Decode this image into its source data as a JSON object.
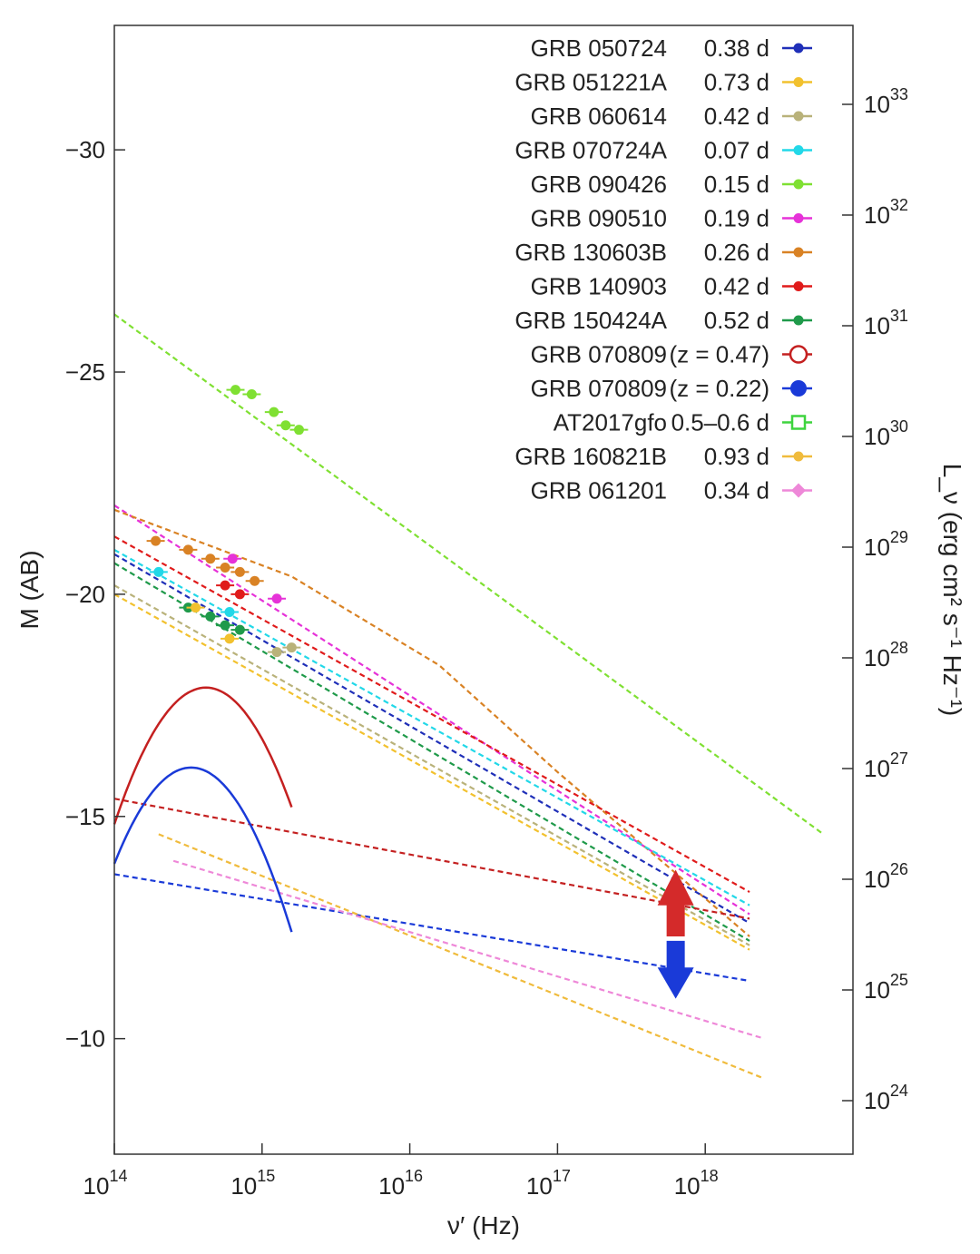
{
  "chart_data": {
    "type": "line",
    "xlabel": "ν′ (Hz)",
    "ylabel_left": "M (AB)",
    "ylabel_right": "L_ν (erg cm² s⁻¹ Hz⁻¹)",
    "x_scale": "log",
    "x_range_log10": [
      14,
      19
    ],
    "x_ticks": [
      {
        "exp": 14,
        "label": "10",
        "sup": "14"
      },
      {
        "exp": 15,
        "label": "10",
        "sup": "15"
      },
      {
        "exp": 16,
        "label": "10",
        "sup": "16"
      },
      {
        "exp": 17,
        "label": "10",
        "sup": "17"
      },
      {
        "exp": 18,
        "label": "10",
        "sup": "18"
      }
    ],
    "y_range": [
      -32.8,
      -7.4
    ],
    "y_ticks": [
      {
        "value": -30,
        "label": "−30"
      },
      {
        "value": -25,
        "label": "−25"
      },
      {
        "value": -20,
        "label": "−20"
      },
      {
        "value": -15,
        "label": "−15"
      },
      {
        "value": -10,
        "label": "−10"
      }
    ],
    "y_right_ticks": [
      {
        "exp": 33,
        "label": "10",
        "sup": "33"
      },
      {
        "exp": 32,
        "label": "10",
        "sup": "32"
      },
      {
        "exp": 31,
        "label": "10",
        "sup": "31"
      },
      {
        "exp": 30,
        "label": "10",
        "sup": "30"
      },
      {
        "exp": 29,
        "label": "10",
        "sup": "29"
      },
      {
        "exp": 28,
        "label": "10",
        "sup": "28"
      },
      {
        "exp": 27,
        "label": "10",
        "sup": "27"
      },
      {
        "exp": 26,
        "label": "10",
        "sup": "26"
      },
      {
        "exp": 25,
        "label": "10",
        "sup": "25"
      },
      {
        "exp": 24,
        "label": "10",
        "sup": "24"
      }
    ],
    "legend": [
      {
        "name": "GRB 050724",
        "epoch": "0.38 d",
        "color": "#1f2fb8",
        "marker": "dot"
      },
      {
        "name": "GRB 051221A",
        "epoch": "0.73 d",
        "color": "#f2c12e",
        "marker": "dot"
      },
      {
        "name": "GRB 060614",
        "epoch": "0.42 d",
        "color": "#b9b27a",
        "marker": "dot"
      },
      {
        "name": "GRB 070724A",
        "epoch": "0.07 d",
        "color": "#22d8e8",
        "marker": "dot"
      },
      {
        "name": "GRB 090426",
        "epoch": "0.15 d",
        "color": "#7fe032",
        "marker": "dot"
      },
      {
        "name": "GRB 090510",
        "epoch": "0.19 d",
        "color": "#e632d8",
        "marker": "dot"
      },
      {
        "name": "GRB 130603B",
        "epoch": "0.26 d",
        "color": "#d98224",
        "marker": "dot"
      },
      {
        "name": "GRB 140903",
        "epoch": "0.42 d",
        "color": "#e01b1b",
        "marker": "dot"
      },
      {
        "name": "GRB 150424A",
        "epoch": "0.52 d",
        "color": "#1f9a4a",
        "marker": "dot"
      },
      {
        "name": "GRB 070809",
        "epoch": "(z = 0.47)",
        "color": "#c42020",
        "marker": "open-circle"
      },
      {
        "name": "GRB 070809",
        "epoch": "(z = 0.22)",
        "color": "#1a3ad8",
        "marker": "big-dot"
      },
      {
        "name": "AT2017gfo",
        "epoch": "0.5–0.6 d",
        "color": "#3ed43e",
        "marker": "square"
      },
      {
        "name": "GRB 160821B",
        "epoch": "0.93 d",
        "color": "#f0bb3c",
        "marker": "dot"
      },
      {
        "name": "GRB 061201",
        "epoch": "0.34 d",
        "color": "#ee88d8",
        "marker": "diamond"
      }
    ],
    "series": [
      {
        "name": "GRB 090426",
        "color": "#7fe032",
        "x": [
          14,
          18.8
        ],
        "y": [
          -26.3,
          -14.6
        ]
      },
      {
        "name": "GRB 090510",
        "color": "#e632d8",
        "x": [
          14,
          18.3
        ],
        "y": [
          -22.0,
          -12.8
        ]
      },
      {
        "name": "GRB 130603B",
        "color": "#d98224",
        "x": [
          14,
          15.2,
          16.2,
          17.0,
          18.3
        ],
        "y": [
          -21.9,
          -20.4,
          -18.4,
          -16.0,
          -12.3
        ]
      },
      {
        "name": "GRB 140903",
        "color": "#e01b1b",
        "x": [
          14,
          18.3
        ],
        "y": [
          -21.3,
          -13.3
        ]
      },
      {
        "name": "GRB 050724",
        "color": "#1f2fb8",
        "x": [
          14,
          18.3
        ],
        "y": [
          -20.9,
          -12.6
        ]
      },
      {
        "name": "GRB 150424A",
        "color": "#1f9a4a",
        "x": [
          14,
          18.3
        ],
        "y": [
          -20.7,
          -12.2
        ]
      },
      {
        "name": "GRB 070724A",
        "color": "#22d8e8",
        "x": [
          14,
          18.3
        ],
        "y": [
          -21.0,
          -13.0
        ]
      },
      {
        "name": "GRB 051221A",
        "color": "#f2c12e",
        "x": [
          14,
          18.3
        ],
        "y": [
          -20.0,
          -12.0
        ]
      },
      {
        "name": "GRB 060614",
        "color": "#b9b27a",
        "x": [
          14,
          18.3
        ],
        "y": [
          -20.2,
          -12.1
        ]
      },
      {
        "name": "GRB 070809 (z = 0.47)",
        "color": "#c42020",
        "x": [
          14,
          18.3
        ],
        "y": [
          -15.4,
          -12.7
        ]
      },
      {
        "name": "GRB 070809 (z = 0.22)",
        "color": "#1a3ad8",
        "x": [
          14,
          18.3
        ],
        "y": [
          -13.7,
          -11.3
        ]
      },
      {
        "name": "GRB 160821B",
        "color": "#f0bb3c",
        "x": [
          14.3,
          18.4
        ],
        "y": [
          -14.6,
          -9.1
        ]
      },
      {
        "name": "GRB 061201",
        "color": "#ee88d8",
        "x": [
          14.4,
          18.4
        ],
        "y": [
          -14.0,
          -10.0
        ]
      }
    ],
    "points": [
      {
        "series": "GRB 090426",
        "color": "#7fe032",
        "x": [
          14.82,
          14.93,
          15.08,
          15.16,
          15.25
        ],
        "y": [
          -24.6,
          -24.5,
          -24.1,
          -23.8,
          -23.7
        ]
      },
      {
        "series": "GRB 130603B",
        "color": "#d98224",
        "x": [
          14.28,
          14.5,
          14.65,
          14.75,
          14.85,
          14.95
        ],
        "y": [
          -21.2,
          -21.0,
          -20.8,
          -20.6,
          -20.5,
          -20.3
        ]
      },
      {
        "series": "GRB 090510",
        "color": "#e632d8",
        "x": [
          14.8,
          15.1
        ],
        "y": [
          -20.8,
          -19.9
        ]
      },
      {
        "series": "GRB 140903",
        "color": "#e01b1b",
        "x": [
          14.75,
          14.85
        ],
        "y": [
          -20.2,
          -20.0
        ]
      },
      {
        "series": "GRB 150424A",
        "color": "#1f9a4a",
        "x": [
          14.5,
          14.65,
          14.75,
          14.85
        ],
        "y": [
          -19.7,
          -19.5,
          -19.3,
          -19.2
        ]
      },
      {
        "series": "GRB 070724A",
        "color": "#22d8e8",
        "x": [
          14.3,
          14.78
        ],
        "y": [
          -20.5,
          -19.6
        ]
      },
      {
        "series": "GRB 060614",
        "color": "#b9b27a",
        "x": [
          15.1,
          15.2
        ],
        "y": [
          -18.7,
          -18.8
        ]
      },
      {
        "series": "GRB 051221A",
        "color": "#f2c12e",
        "x": [
          14.55,
          14.78
        ],
        "y": [
          -19.7,
          -19.0
        ]
      }
    ],
    "models": [
      {
        "series": "GRB 070809 (z = 0.47)",
        "color": "#c42020",
        "peak_x": 14.62,
        "peak_y": -17.9
      },
      {
        "series": "GRB 070809 (z = 0.22)",
        "color": "#1a3ad8",
        "peak_x": 14.52,
        "peak_y": -16.1
      }
    ]
  }
}
